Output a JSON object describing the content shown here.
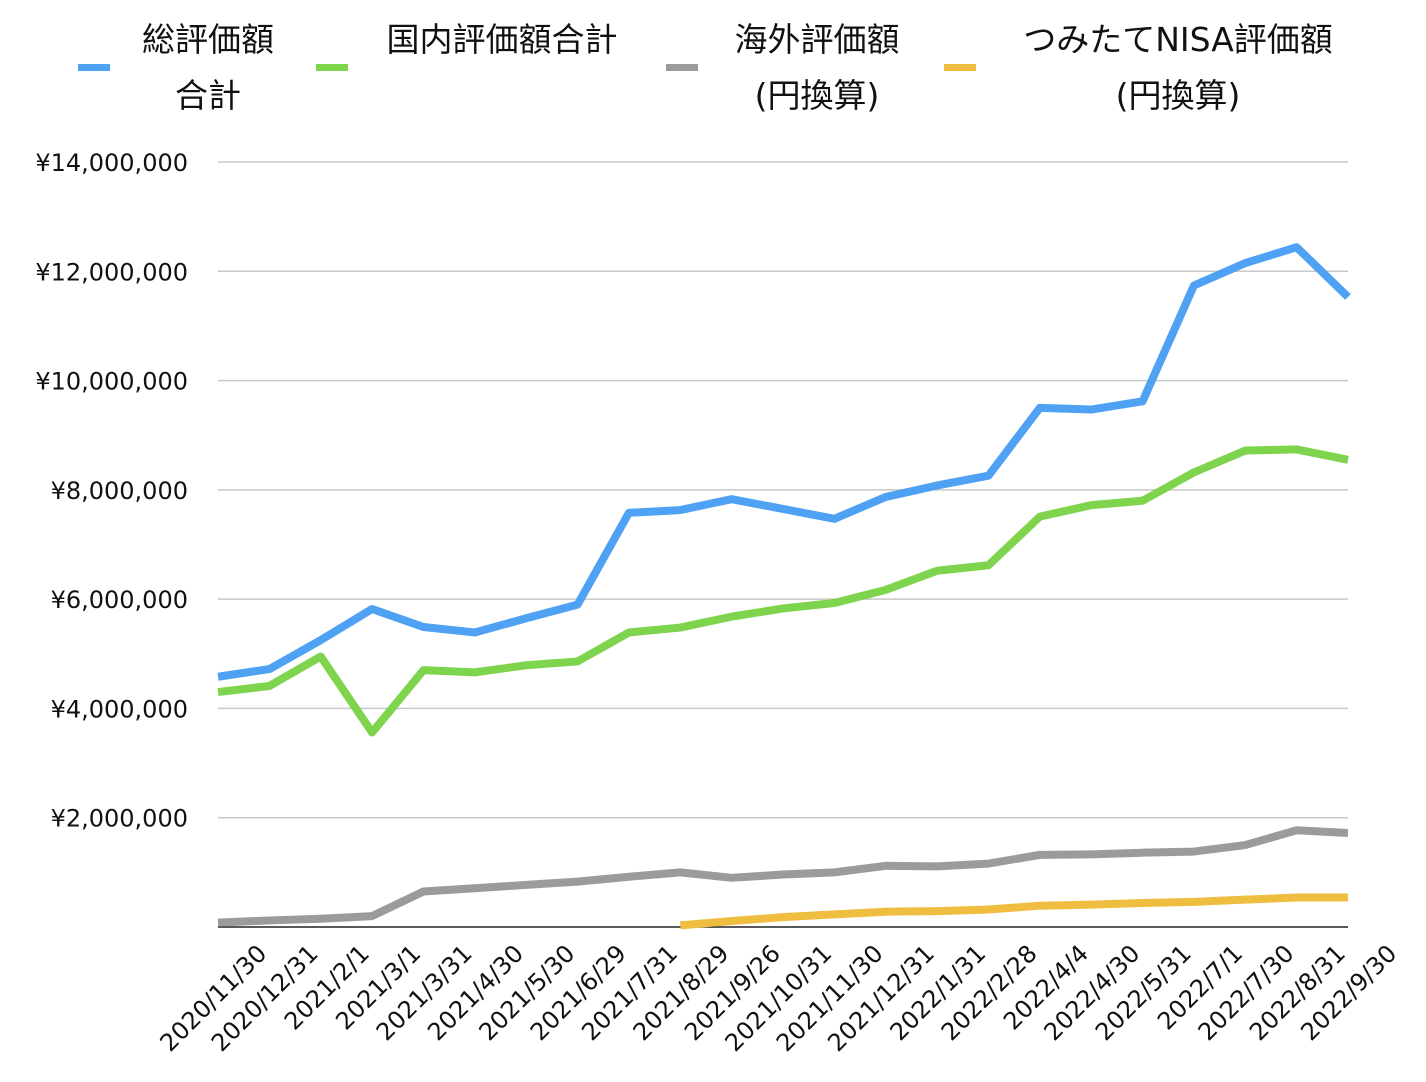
{
  "chart_data": {
    "type": "line",
    "title": "",
    "xlabel": "",
    "ylabel": "",
    "ylim": [
      0,
      14000000
    ],
    "yticks": [
      2000000,
      4000000,
      6000000,
      8000000,
      10000000,
      12000000,
      14000000
    ],
    "ytick_labels": [
      "¥2,000,000",
      "¥4,000,000",
      "¥6,000,000",
      "¥8,000,000",
      "¥10,000,000",
      "¥12,000,000",
      "¥14,000,000"
    ],
    "grid": true,
    "legend_position": "top",
    "categories": [
      "2020/11/30",
      "2020/12/31",
      "2021/2/1",
      "2021/3/1",
      "2021/3/31",
      "2021/4/30",
      "2021/5/30",
      "2021/6/29",
      "2021/7/31",
      "2021/8/29",
      "2021/9/26",
      "2021/10/31",
      "2021/11/30",
      "2021/12/31",
      "2022/1/31",
      "2022/2/28",
      "2022/4/4",
      "2022/4/30",
      "2022/5/31",
      "2022/7/1",
      "2022/7/30",
      "2022/8/31",
      "2022/9/30"
    ],
    "series": [
      {
        "name_lines": [
          "総評価額",
          "合計"
        ],
        "color": "#4ea1f3",
        "values": [
          4580000,
          4720000,
          5250000,
          5820000,
          5490000,
          5390000,
          5650000,
          5900000,
          7580000,
          7630000,
          7830000,
          7650000,
          7470000,
          7870000,
          8080000,
          8260000,
          9500000,
          9470000,
          9620000,
          11740000,
          12150000,
          12440000,
          11530000
        ]
      },
      {
        "name_lines": [
          "国内評価額合計"
        ],
        "color": "#7fd44d",
        "values": [
          4300000,
          4410000,
          4950000,
          3560000,
          4700000,
          4660000,
          4790000,
          4860000,
          5390000,
          5480000,
          5680000,
          5830000,
          5930000,
          6170000,
          6520000,
          6620000,
          7510000,
          7720000,
          7800000,
          8320000,
          8720000,
          8740000,
          8550000
        ]
      },
      {
        "name_lines": [
          "海外評価額",
          "(円換算)"
        ],
        "color": "#9b9b9b",
        "values": [
          80000,
          120000,
          150000,
          200000,
          650000,
          710000,
          770000,
          830000,
          920000,
          1000000,
          900000,
          960000,
          1000000,
          1120000,
          1110000,
          1160000,
          1320000,
          1330000,
          1360000,
          1380000,
          1500000,
          1770000,
          1720000
        ]
      },
      {
        "name_lines": [
          "つみたてNISA評価額",
          "(円換算)"
        ],
        "color": "#efbd3f",
        "values": [
          null,
          null,
          null,
          null,
          null,
          null,
          null,
          null,
          null,
          30000,
          110000,
          180000,
          230000,
          280000,
          290000,
          320000,
          390000,
          410000,
          440000,
          460000,
          500000,
          540000,
          540000
        ]
      }
    ]
  }
}
